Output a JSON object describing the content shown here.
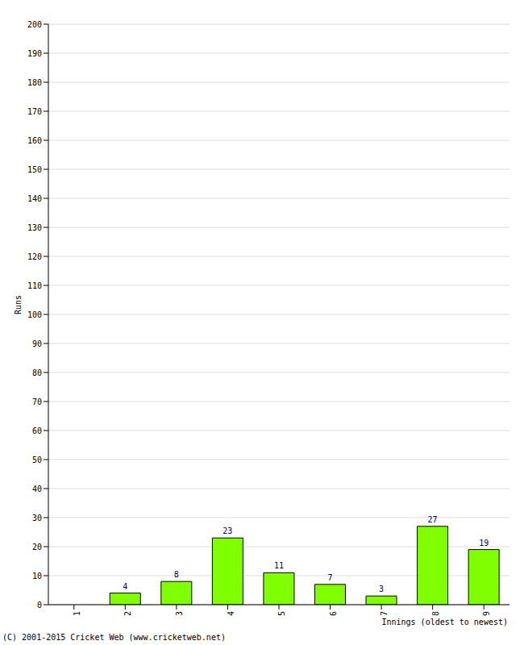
{
  "chart_data": {
    "type": "bar",
    "categories": [
      "1",
      "2",
      "3",
      "4",
      "5",
      "6",
      "7",
      "8",
      "9"
    ],
    "values": [
      0,
      4,
      8,
      23,
      11,
      7,
      3,
      27,
      19
    ],
    "color": "#80ff00",
    "ylabel": "Runs",
    "xlabel": "Innings (oldest to newest)",
    "annotations": [
      "(C) 2001-2015 Cricket Web (www.cricketweb.net)"
    ],
    "ylim": [
      0,
      200
    ],
    "yticks": [
      0,
      10,
      20,
      30,
      40,
      50,
      60,
      70,
      80,
      90,
      100,
      110,
      120,
      130,
      140,
      150,
      160,
      170,
      180,
      190,
      200
    ],
    "grid": true,
    "data_labels": true
  }
}
